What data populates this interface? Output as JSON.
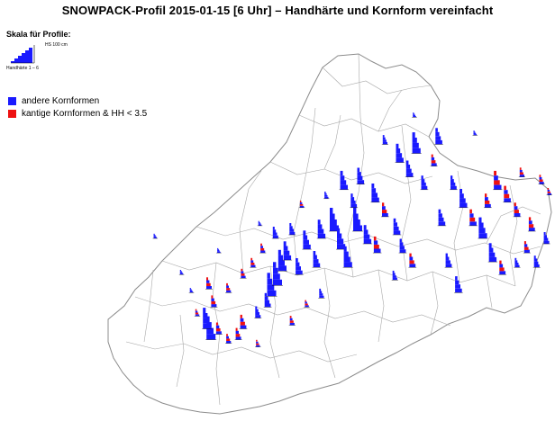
{
  "title": "SNOWPACK-Profil 2015-01-15  [6 Uhr] – Handhärte und Kornform vereinfacht",
  "scale": {
    "title": "Skala für Profile:",
    "hs_label": "HS 100 cm",
    "hh_label": "Handhärte 1 – 6"
  },
  "legend": [
    {
      "label": "andere Kornformen",
      "color": "#1a1aff"
    },
    {
      "label": "kantige Kornformen & HH < 3.5",
      "color": "#ee1111"
    }
  ],
  "colors": {
    "outline": "#8c8c8c",
    "blue": "#1a1aff",
    "red": "#ee1111"
  },
  "profiles": [
    {
      "lon": 7.02,
      "lat": 46.22,
      "hs": 1.0,
      "red": false
    },
    {
      "lon": 6.98,
      "lat": 46.28,
      "hs": 0.9,
      "red": false
    },
    {
      "lon": 7.1,
      "lat": 46.25,
      "hs": 0.5,
      "red": true
    },
    {
      "lon": 7.2,
      "lat": 46.2,
      "hs": 0.4,
      "red": true
    },
    {
      "lon": 7.3,
      "lat": 46.22,
      "hs": 0.5,
      "red": true
    },
    {
      "lon": 7.35,
      "lat": 46.28,
      "hs": 0.6,
      "red": true
    },
    {
      "lon": 7.5,
      "lat": 46.34,
      "hs": 0.5,
      "red": false
    },
    {
      "lon": 7.6,
      "lat": 46.4,
      "hs": 0.6,
      "red": false
    },
    {
      "lon": 7.64,
      "lat": 46.46,
      "hs": 1.0,
      "red": false
    },
    {
      "lon": 7.7,
      "lat": 46.52,
      "hs": 1.0,
      "red": false
    },
    {
      "lon": 7.75,
      "lat": 46.6,
      "hs": 0.9,
      "red": false
    },
    {
      "lon": 7.8,
      "lat": 46.66,
      "hs": 0.8,
      "red": false
    },
    {
      "lon": 7.92,
      "lat": 46.58,
      "hs": 0.7,
      "red": false
    },
    {
      "lon": 7.2,
      "lat": 46.48,
      "hs": 0.4,
      "red": true
    },
    {
      "lon": 7.0,
      "lat": 46.5,
      "hs": 0.5,
      "red": true
    },
    {
      "lon": 7.05,
      "lat": 46.4,
      "hs": 0.5,
      "red": true
    },
    {
      "lon": 6.82,
      "lat": 46.48,
      "hs": 0.2,
      "red": false
    },
    {
      "lon": 6.72,
      "lat": 46.58,
      "hs": 0.2,
      "red": false
    },
    {
      "lon": 7.35,
      "lat": 46.56,
      "hs": 0.4,
      "red": true
    },
    {
      "lon": 7.45,
      "lat": 46.62,
      "hs": 0.4,
      "red": true
    },
    {
      "lon": 7.55,
      "lat": 46.7,
      "hs": 0.4,
      "red": true
    },
    {
      "lon": 7.68,
      "lat": 46.78,
      "hs": 0.5,
      "red": false
    },
    {
      "lon": 7.85,
      "lat": 46.8,
      "hs": 0.5,
      "red": false
    },
    {
      "lon": 8.0,
      "lat": 46.72,
      "hs": 0.8,
      "red": false
    },
    {
      "lon": 8.1,
      "lat": 46.62,
      "hs": 0.7,
      "red": false
    },
    {
      "lon": 8.15,
      "lat": 46.78,
      "hs": 0.8,
      "red": false
    },
    {
      "lon": 8.28,
      "lat": 46.82,
      "hs": 1.0,
      "red": false
    },
    {
      "lon": 8.35,
      "lat": 46.72,
      "hs": 0.9,
      "red": false
    },
    {
      "lon": 8.42,
      "lat": 46.62,
      "hs": 0.9,
      "red": false
    },
    {
      "lon": 8.52,
      "lat": 46.82,
      "hs": 1.0,
      "red": false
    },
    {
      "lon": 8.62,
      "lat": 46.75,
      "hs": 0.8,
      "red": false
    },
    {
      "lon": 8.72,
      "lat": 46.7,
      "hs": 0.7,
      "red": true
    },
    {
      "lon": 8.48,
      "lat": 46.95,
      "hs": 0.6,
      "red": false
    },
    {
      "lon": 8.38,
      "lat": 47.05,
      "hs": 0.8,
      "red": false
    },
    {
      "lon": 8.55,
      "lat": 47.08,
      "hs": 0.7,
      "red": false
    },
    {
      "lon": 8.7,
      "lat": 46.98,
      "hs": 0.8,
      "red": false
    },
    {
      "lon": 8.8,
      "lat": 46.9,
      "hs": 0.6,
      "red": true
    },
    {
      "lon": 8.92,
      "lat": 46.8,
      "hs": 0.7,
      "red": false
    },
    {
      "lon": 8.98,
      "lat": 46.7,
      "hs": 0.6,
      "red": false
    },
    {
      "lon": 9.08,
      "lat": 46.62,
      "hs": 0.6,
      "red": true
    },
    {
      "lon": 8.9,
      "lat": 46.55,
      "hs": 0.4,
      "red": false
    },
    {
      "lon": 8.95,
      "lat": 47.2,
      "hs": 0.8,
      "red": false
    },
    {
      "lon": 9.05,
      "lat": 47.12,
      "hs": 0.7,
      "red": false
    },
    {
      "lon": 9.12,
      "lat": 47.25,
      "hs": 0.9,
      "red": false
    },
    {
      "lon": 9.2,
      "lat": 47.05,
      "hs": 0.6,
      "red": false
    },
    {
      "lon": 9.3,
      "lat": 47.18,
      "hs": 0.5,
      "red": true
    },
    {
      "lon": 9.35,
      "lat": 47.3,
      "hs": 0.7,
      "red": false
    },
    {
      "lon": 9.5,
      "lat": 47.05,
      "hs": 0.6,
      "red": false
    },
    {
      "lon": 9.6,
      "lat": 46.95,
      "hs": 0.8,
      "red": false
    },
    {
      "lon": 9.7,
      "lat": 46.85,
      "hs": 0.7,
      "red": true
    },
    {
      "lon": 9.8,
      "lat": 46.78,
      "hs": 0.9,
      "red": false
    },
    {
      "lon": 9.9,
      "lat": 46.65,
      "hs": 0.8,
      "red": false
    },
    {
      "lon": 10.0,
      "lat": 46.58,
      "hs": 0.6,
      "red": true
    },
    {
      "lon": 10.15,
      "lat": 46.62,
      "hs": 0.4,
      "red": false
    },
    {
      "lon": 10.25,
      "lat": 46.7,
      "hs": 0.5,
      "red": true
    },
    {
      "lon": 10.35,
      "lat": 46.62,
      "hs": 0.5,
      "red": false
    },
    {
      "lon": 10.3,
      "lat": 46.82,
      "hs": 0.6,
      "red": true
    },
    {
      "lon": 10.15,
      "lat": 46.9,
      "hs": 0.6,
      "red": true
    },
    {
      "lon": 10.05,
      "lat": 46.98,
      "hs": 0.7,
      "red": true
    },
    {
      "lon": 9.95,
      "lat": 47.05,
      "hs": 0.8,
      "red": true
    },
    {
      "lon": 9.85,
      "lat": 46.95,
      "hs": 0.6,
      "red": true
    },
    {
      "lon": 10.4,
      "lat": 47.08,
      "hs": 0.4,
      "red": true
    },
    {
      "lon": 10.2,
      "lat": 47.12,
      "hs": 0.4,
      "red": true
    },
    {
      "lon": 10.45,
      "lat": 46.75,
      "hs": 0.5,
      "red": false
    },
    {
      "lon": 9.45,
      "lat": 46.62,
      "hs": 0.6,
      "red": false
    },
    {
      "lon": 9.55,
      "lat": 46.48,
      "hs": 0.7,
      "red": false
    },
    {
      "lon": 9.38,
      "lat": 46.85,
      "hs": 0.7,
      "red": false
    },
    {
      "lon": 8.8,
      "lat": 47.3,
      "hs": 0.4,
      "red": false
    },
    {
      "lon": 8.2,
      "lat": 47.0,
      "hs": 0.3,
      "red": false
    },
    {
      "lon": 7.95,
      "lat": 46.95,
      "hs": 0.3,
      "red": true
    },
    {
      "lon": 7.52,
      "lat": 46.85,
      "hs": 0.2,
      "red": false
    },
    {
      "lon": 7.1,
      "lat": 46.7,
      "hs": 0.2,
      "red": false
    },
    {
      "lon": 6.45,
      "lat": 46.78,
      "hs": 0.2,
      "red": false
    },
    {
      "lon": 9.1,
      "lat": 47.45,
      "hs": 0.2,
      "red": false
    },
    {
      "lon": 9.72,
      "lat": 47.35,
      "hs": 0.2,
      "red": false
    },
    {
      "lon": 10.48,
      "lat": 47.02,
      "hs": 0.3,
      "red": true
    },
    {
      "lon": 8.15,
      "lat": 46.45,
      "hs": 0.4,
      "red": false
    },
    {
      "lon": 8.0,
      "lat": 46.4,
      "hs": 0.3,
      "red": true
    },
    {
      "lon": 7.85,
      "lat": 46.3,
      "hs": 0.4,
      "red": true
    },
    {
      "lon": 7.5,
      "lat": 46.18,
      "hs": 0.3,
      "red": true
    },
    {
      "lon": 6.88,
      "lat": 46.35,
      "hs": 0.3,
      "red": true
    }
  ]
}
